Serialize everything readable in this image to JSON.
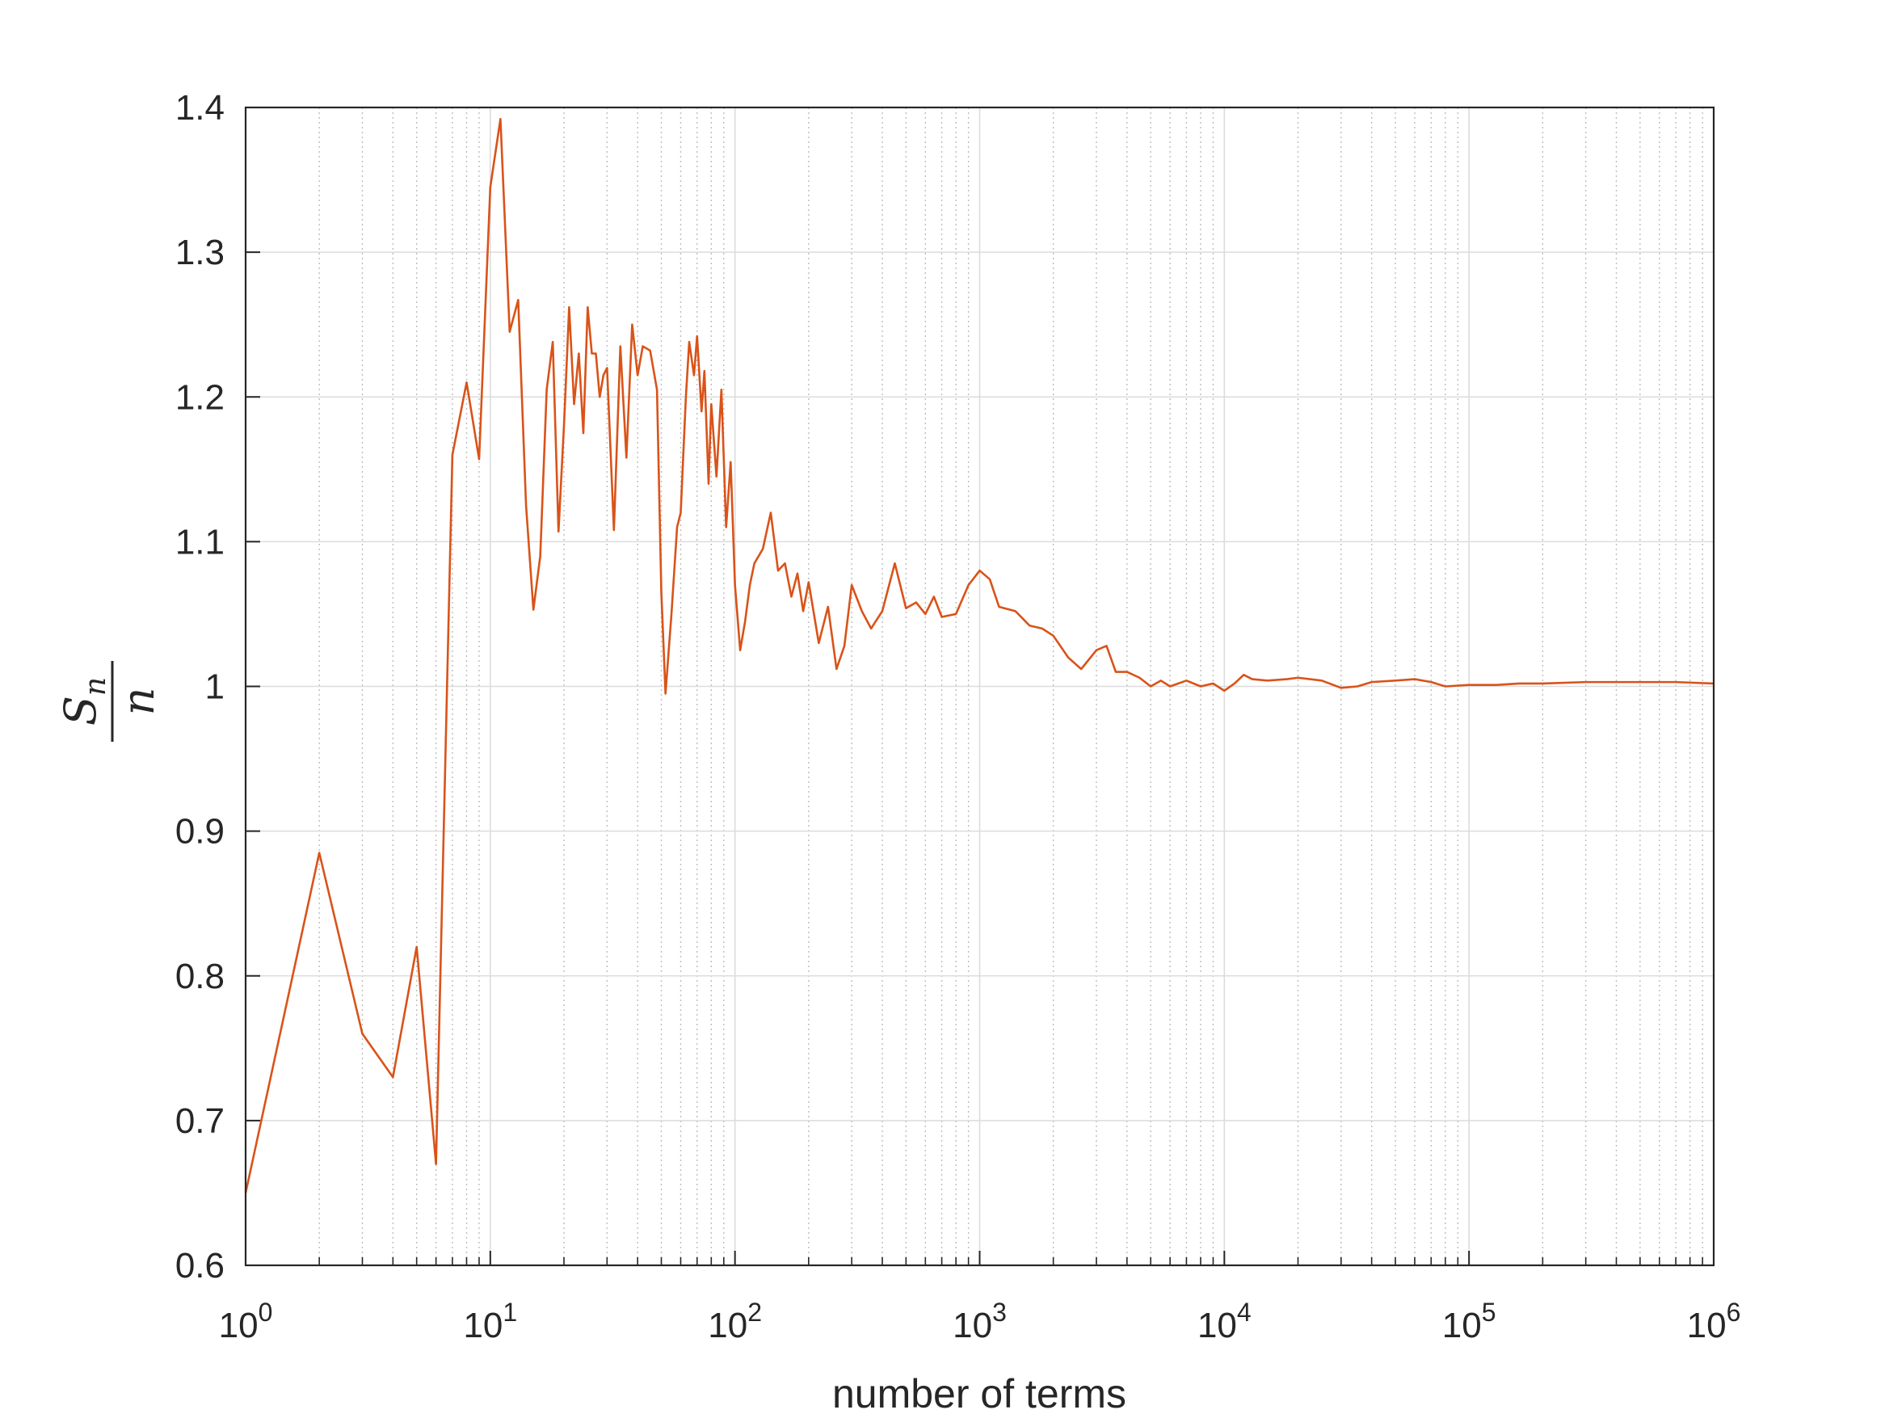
{
  "chart_data": {
    "type": "line",
    "xlabel": "number of terms",
    "ylabel": {
      "numerator": "S",
      "numerator_subscript": "n",
      "denominator": "n"
    },
    "x_scale": "log",
    "xlim": [
      1,
      1000000
    ],
    "ylim": [
      0.6,
      1.4
    ],
    "grid": true,
    "x_ticks": [
      {
        "base": "10",
        "exp": "0"
      },
      {
        "base": "10",
        "exp": "1"
      },
      {
        "base": "10",
        "exp": "2"
      },
      {
        "base": "10",
        "exp": "3"
      },
      {
        "base": "10",
        "exp": "4"
      },
      {
        "base": "10",
        "exp": "5"
      },
      {
        "base": "10",
        "exp": "6"
      }
    ],
    "y_ticks": [
      "0.6",
      "0.7",
      "0.8",
      "0.9",
      "1",
      "1.1",
      "1.2",
      "1.3",
      "1.4"
    ],
    "series": [
      {
        "color": "#d95319",
        "x": [
          1,
          2,
          3,
          4,
          5,
          6,
          7,
          8,
          9,
          10,
          11,
          12,
          13,
          14,
          15,
          16,
          17,
          18,
          19,
          20,
          21,
          22,
          23,
          24,
          25,
          26,
          27,
          28,
          29,
          30,
          32,
          34,
          36,
          38,
          40,
          42,
          45,
          48,
          50,
          52,
          55,
          58,
          60,
          63,
          65,
          68,
          70,
          73,
          75,
          78,
          80,
          84,
          88,
          92,
          96,
          100,
          105,
          110,
          115,
          120,
          130,
          140,
          150,
          160,
          170,
          180,
          190,
          200,
          220,
          240,
          260,
          280,
          300,
          330,
          360,
          400,
          450,
          500,
          550,
          600,
          650,
          700,
          800,
          900,
          1000,
          1100,
          1200,
          1400,
          1600,
          1800,
          2000,
          2300,
          2600,
          3000,
          3300,
          3600,
          4000,
          4500,
          5000,
          5500,
          6000,
          7000,
          8000,
          9000,
          10000,
          11000,
          12000,
          13000,
          15000,
          18000,
          20000,
          25000,
          30000,
          35000,
          40000,
          50000,
          60000,
          70000,
          80000,
          100000,
          130000,
          160000,
          200000,
          300000,
          400000,
          500000,
          700000,
          1000000
        ],
        "y": [
          0.65,
          0.885,
          0.76,
          0.73,
          0.82,
          0.67,
          1.16,
          1.21,
          1.157,
          1.345,
          1.392,
          1.245,
          1.267,
          1.125,
          1.053,
          1.09,
          1.205,
          1.238,
          1.107,
          1.18,
          1.262,
          1.195,
          1.23,
          1.175,
          1.262,
          1.23,
          1.23,
          1.2,
          1.215,
          1.22,
          1.108,
          1.235,
          1.158,
          1.25,
          1.215,
          1.235,
          1.232,
          1.205,
          1.065,
          0.995,
          1.05,
          1.11,
          1.12,
          1.2,
          1.238,
          1.215,
          1.242,
          1.19,
          1.218,
          1.14,
          1.195,
          1.145,
          1.205,
          1.11,
          1.155,
          1.07,
          1.025,
          1.045,
          1.07,
          1.085,
          1.095,
          1.12,
          1.08,
          1.085,
          1.062,
          1.078,
          1.052,
          1.072,
          1.03,
          1.055,
          1.012,
          1.028,
          1.07,
          1.052,
          1.04,
          1.052,
          1.085,
          1.054,
          1.058,
          1.05,
          1.062,
          1.048,
          1.05,
          1.07,
          1.08,
          1.074,
          1.055,
          1.052,
          1.042,
          1.04,
          1.035,
          1.02,
          1.012,
          1.025,
          1.028,
          1.01,
          1.01,
          1.006,
          1.0,
          1.004,
          1.0,
          1.004,
          1.0,
          1.002,
          0.997,
          1.002,
          1.008,
          1.005,
          1.004,
          1.005,
          1.006,
          1.004,
          0.999,
          1.0,
          1.003,
          1.004,
          1.005,
          1.003,
          1.0,
          1.001,
          1.001,
          1.002,
          1.002,
          1.003,
          1.003,
          1.003,
          1.003,
          1.002
        ]
      }
    ]
  }
}
